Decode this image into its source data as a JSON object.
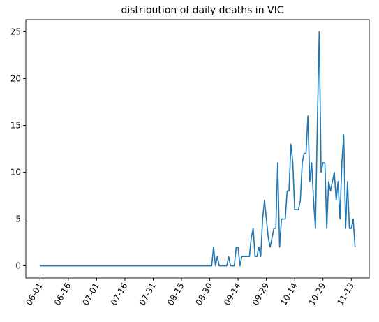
{
  "chart_data": {
    "type": "line",
    "title": "distribution of daily deaths in VIC",
    "xlabel": "",
    "ylabel": "",
    "ylim": [
      -1.3,
      26.3
    ],
    "yticks": [
      0,
      5,
      10,
      15,
      20,
      25
    ],
    "x_start": "06-01",
    "x_end": "11-15",
    "xtick_labels": [
      "06-01",
      "06-16",
      "07-01",
      "07-16",
      "07-31",
      "08-15",
      "08-30",
      "09-14",
      "09-29",
      "10-14",
      "10-29",
      "11-13"
    ],
    "grid": false,
    "line_color": "#1f77b4",
    "series": [
      {
        "values": [
          0,
          0,
          0,
          0,
          0,
          0,
          0,
          0,
          0,
          0,
          0,
          0,
          0,
          0,
          0,
          0,
          0,
          0,
          0,
          0,
          0,
          0,
          0,
          0,
          0,
          0,
          0,
          0,
          0,
          0,
          0,
          0,
          0,
          0,
          0,
          0,
          0,
          0,
          0,
          0,
          0,
          0,
          0,
          0,
          0,
          0,
          0,
          0,
          0,
          0,
          0,
          0,
          0,
          0,
          0,
          0,
          0,
          0,
          0,
          0,
          0,
          0,
          0,
          0,
          0,
          0,
          0,
          0,
          0,
          0,
          0,
          0,
          0,
          0,
          0,
          0,
          0,
          0,
          0,
          0,
          0,
          0,
          0,
          0,
          0,
          0,
          0,
          0,
          0,
          0,
          0,
          0,
          2,
          0,
          1,
          0,
          0,
          0,
          0,
          0,
          1,
          0,
          0,
          0,
          2,
          2,
          0,
          1,
          1,
          1,
          1,
          1,
          3,
          4,
          1,
          1,
          2,
          1,
          5,
          7,
          5,
          3,
          2,
          3,
          4,
          4,
          11,
          2,
          5,
          5,
          5,
          8,
          8,
          13,
          11,
          6,
          6,
          6,
          7,
          11,
          12,
          12,
          16,
          9,
          11,
          7,
          4,
          15,
          25,
          10,
          11,
          11,
          4,
          9,
          8,
          9,
          10,
          7,
          9,
          5,
          11,
          14,
          4,
          9,
          4,
          4,
          5,
          2
        ]
      }
    ]
  }
}
